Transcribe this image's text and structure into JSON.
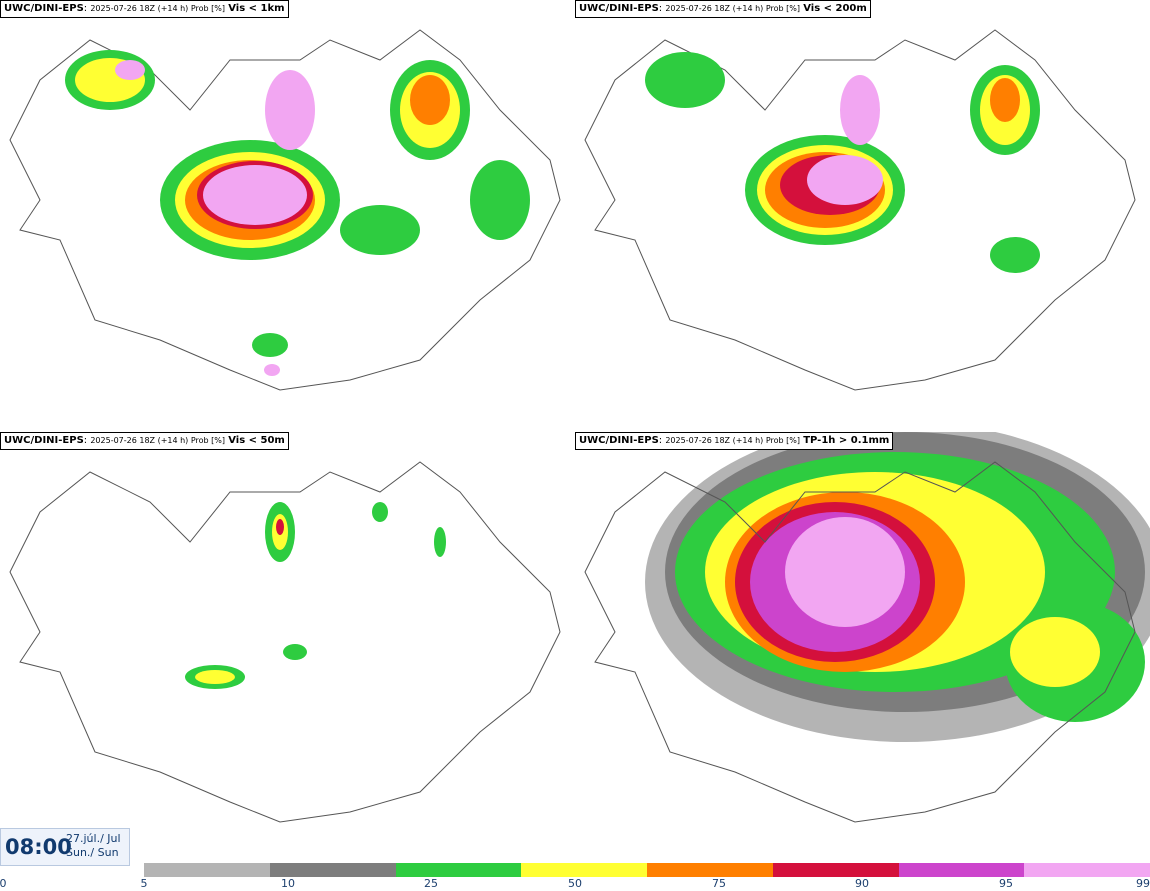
{
  "panels": [
    {
      "id": "p1",
      "title_prefix": "UWC/DINI-EPS",
      "title_meta": "2025-07-26 18Z (+14 h) Prob [%]",
      "title_var": "Vis < 1km"
    },
    {
      "id": "p2",
      "title_prefix": "UWC/DINI-EPS",
      "title_meta": "2025-07-26 18Z (+14 h) Prob [%]",
      "title_var": "Vis < 200m"
    },
    {
      "id": "p3",
      "title_prefix": "UWC/DINI-EPS",
      "title_meta": "2025-07-26 18Z (+14 h) Prob [%]",
      "title_var": "Vis < 50m"
    },
    {
      "id": "p4",
      "title_prefix": "UWC/DINI-EPS",
      "title_meta": "2025-07-26 18Z (+14 h) Prob [%]",
      "title_var": "TP-1h > 0.1mm"
    }
  ],
  "time": {
    "clock": "08:00",
    "date_line1": "27.júl./ Jul",
    "date_line2": "Sun./ Sun"
  },
  "colorbar": {
    "colors": [
      "#b4b4b4",
      "#7d7d7d",
      "#2ecc40",
      "#ffff33",
      "#ff7f00",
      "#d4103c",
      "#cc44cc",
      "#f2a6f2"
    ],
    "ticks": [
      "0",
      "5",
      "10",
      "25",
      "50",
      "75",
      "90",
      "95",
      "99"
    ]
  }
}
